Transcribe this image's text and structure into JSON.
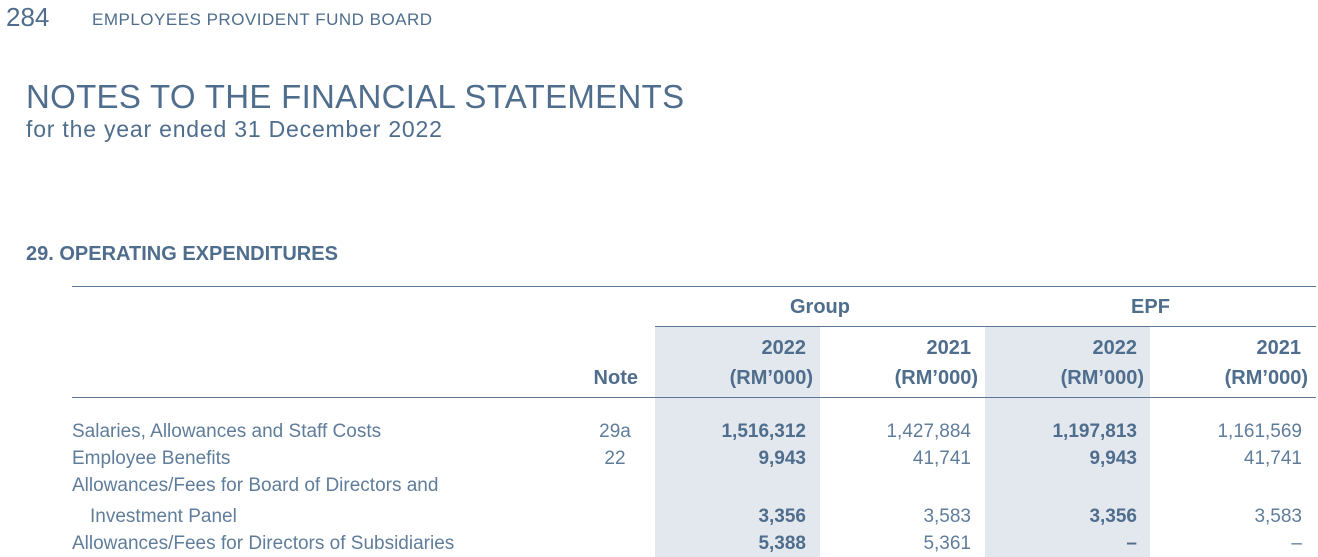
{
  "header": {
    "page_number": "284",
    "organization": "EMPLOYEES PROVIDENT FUND BOARD"
  },
  "document": {
    "title": "NOTES TO THE FINANCIAL STATEMENTS",
    "subtitle": "for the year ended 31 December 2022",
    "section_title": "29. OPERATING EXPENDITURES"
  },
  "table": {
    "group_label": "Group",
    "epf_label": "EPF",
    "note_label": "Note",
    "columns": [
      {
        "year": "2022",
        "unit": "(RM’000)"
      },
      {
        "year": "2021",
        "unit": "(RM’000)"
      },
      {
        "year": "2022",
        "unit": "(RM’000)"
      },
      {
        "year": "2021",
        "unit": "(RM’000)"
      }
    ],
    "rows": [
      {
        "label": "Salaries, Allowances and Staff Costs",
        "note": "29a",
        "values": [
          "1,516,312",
          "1,427,884",
          "1,197,813",
          "1,161,569"
        ]
      },
      {
        "label": "Employee Benefits",
        "note": "22",
        "values": [
          "9,943",
          "41,741",
          "9,943",
          "41,741"
        ]
      },
      {
        "label": "Allowances/Fees for Board of Directors and",
        "label_continued": "Investment Panel",
        "note": "",
        "values": [
          "3,356",
          "3,583",
          "3,356",
          "3,583"
        ]
      },
      {
        "label": "Allowances/Fees for Directors of Subsidiaries",
        "note": "",
        "values": [
          "5,388",
          "5,361",
          "–",
          "–"
        ]
      }
    ]
  }
}
